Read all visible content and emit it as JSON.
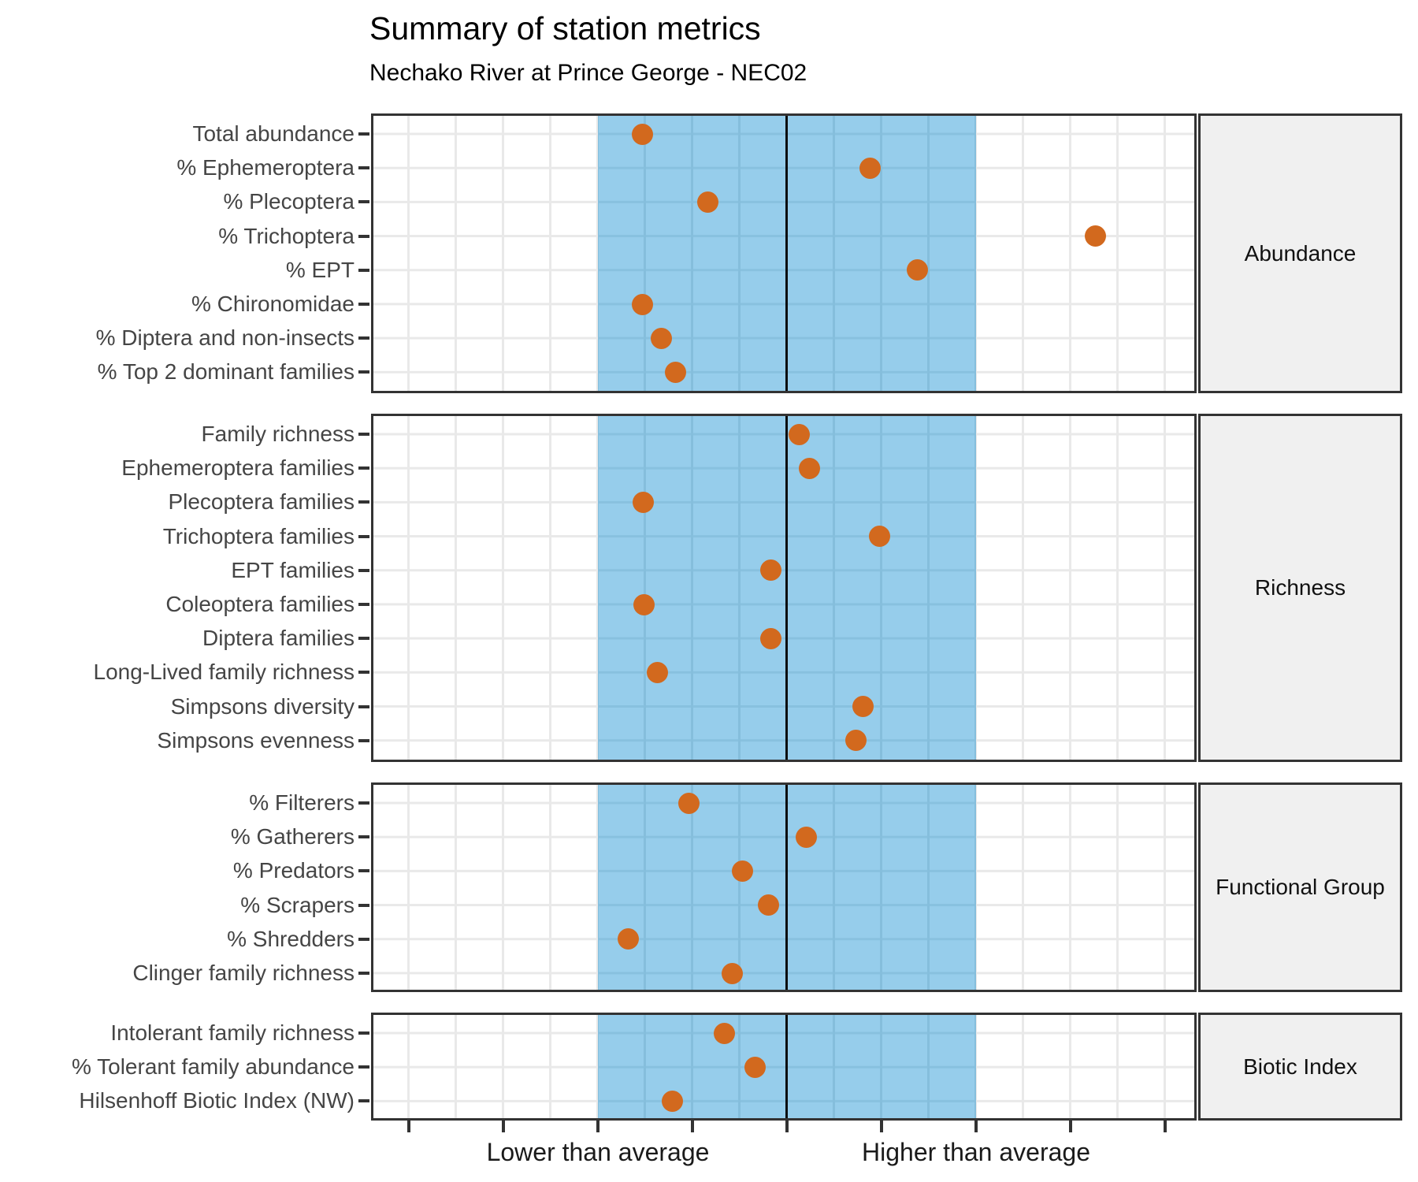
{
  "title": "Summary of station metrics",
  "subtitle": "Nechako River at Prince George - NEC02",
  "axis": {
    "lower_label": "Lower than average",
    "higher_label": "Higher than average"
  },
  "colors": {
    "dot": "#D2691E",
    "band_fill": "#96CDEB",
    "gridline": "#E9E9E9",
    "panel_border": "#333333",
    "center_line": "#0b0b0b",
    "y_label_text": "#454545",
    "strip_fill": "#F0F0F0",
    "axis_text": "#1a1a1a"
  },
  "chart_data": {
    "type": "scatter",
    "title": "Summary of station metrics",
    "subtitle": "Nechako River at Prince George - NEC02",
    "orientation": "horizontal dot plot, one dot per metric row",
    "x_axis": {
      "unit": "relative departure from regional average (no numeric ticks shown)",
      "range": [
        -4.4,
        4.33
      ],
      "center_reference": 0,
      "shaded_band": [
        -2,
        2
      ],
      "tick_positions": [
        -4,
        -3,
        -2,
        -1,
        0,
        1,
        2,
        3,
        4
      ],
      "label_lower": "Lower than average",
      "label_lower_at": -2,
      "label_higher": "Higher than average",
      "label_higher_at": 2,
      "grid": "on"
    },
    "legend": "none",
    "panels": [
      {
        "group": "Abundance",
        "metrics": [
          {
            "label": "Total abundance",
            "position": -1.53
          },
          {
            "label": "% Ephemeroptera",
            "position": 0.88
          },
          {
            "label": "% Plecoptera",
            "position": -0.84
          },
          {
            "label": "% Trichoptera",
            "position": 3.26
          },
          {
            "label": "% EPT",
            "position": 1.38
          },
          {
            "label": "% Chironomidae",
            "position": -1.53
          },
          {
            "label": "% Diptera and non-insects",
            "position": -1.33
          },
          {
            "label": "% Top 2 dominant families",
            "position": -1.18
          }
        ]
      },
      {
        "group": "Richness",
        "metrics": [
          {
            "label": "Family richness",
            "position": 0.13
          },
          {
            "label": "Ephemeroptera families",
            "position": 0.24
          },
          {
            "label": "Plecoptera families",
            "position": -1.52
          },
          {
            "label": "Trichoptera families",
            "position": 0.98
          },
          {
            "label": "EPT families",
            "position": -0.17
          },
          {
            "label": "Coleoptera families",
            "position": -1.51
          },
          {
            "label": "Diptera families",
            "position": -0.17
          },
          {
            "label": "Long-Lived family richness",
            "position": -1.37
          },
          {
            "label": "Simpsons diversity",
            "position": 0.8
          },
          {
            "label": "Simpsons evenness",
            "position": 0.73
          }
        ]
      },
      {
        "group": "Functional Group",
        "metrics": [
          {
            "label": "% Filterers",
            "position": -1.04
          },
          {
            "label": "% Gatherers",
            "position": 0.2
          },
          {
            "label": "% Predators",
            "position": -0.47
          },
          {
            "label": "% Scrapers",
            "position": -0.2
          },
          {
            "label": "% Shredders",
            "position": -1.68
          },
          {
            "label": "Clinger family richness",
            "position": -0.58
          }
        ]
      },
      {
        "group": "Biotic Index",
        "metrics": [
          {
            "label": "Intolerant family richness",
            "position": -0.66
          },
          {
            "label": "% Tolerant family abundance",
            "position": -0.34
          },
          {
            "label": "Hilsenhoff Biotic Index (NW)",
            "position": -1.21
          }
        ]
      }
    ]
  }
}
